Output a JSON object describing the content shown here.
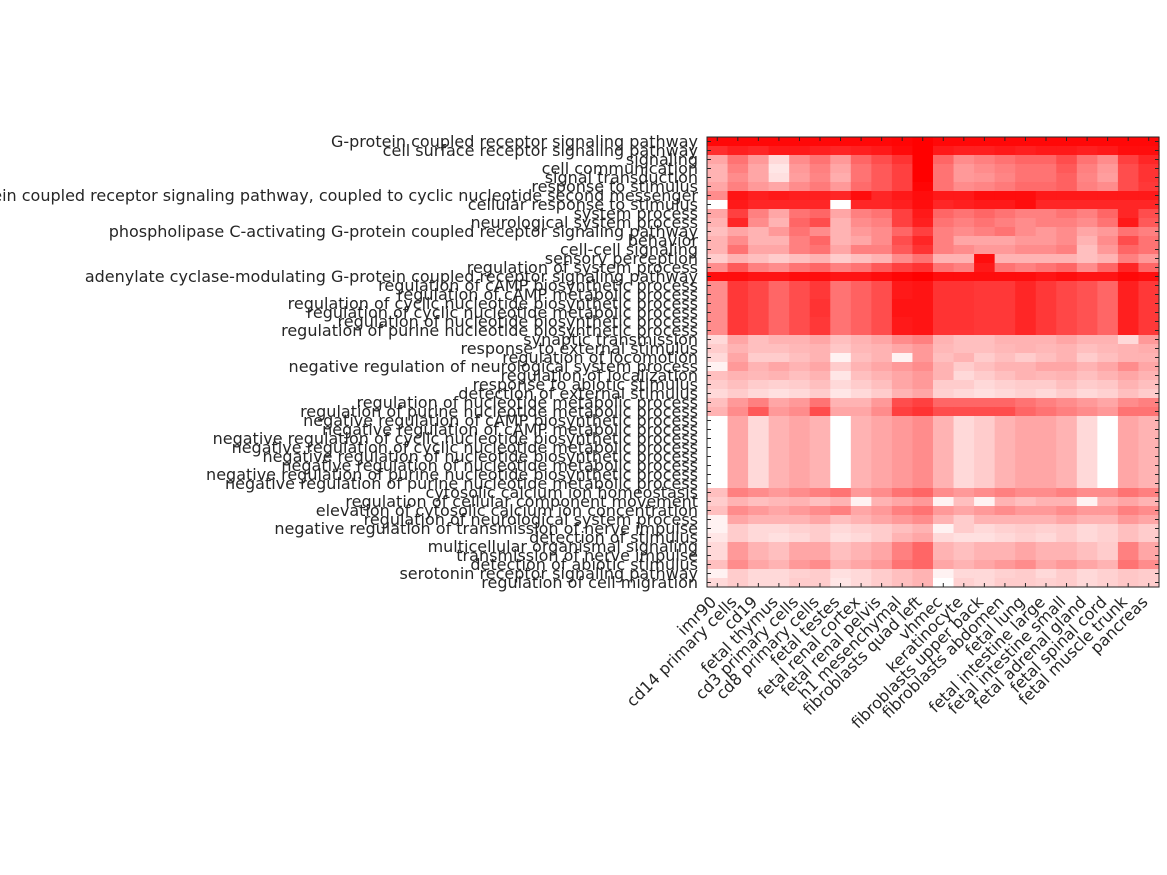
{
  "chart_data": {
    "type": "heatmap",
    "title": "",
    "xlabel": "",
    "ylabel": "",
    "colormap": [
      "#ffffff",
      "#ff0000"
    ],
    "color_range": [
      0,
      1
    ],
    "rows": [
      "G-protein coupled receptor signaling pathway",
      "cell surface receptor signaling pathway",
      "signaling",
      "cell communication",
      "signal transduction",
      "response to stimulus",
      "G-protein coupled receptor signaling pathway, coupled to cyclic nucleotide second messenger",
      "cellular response to stimulus",
      "system process",
      "neurological system process",
      "phospholipase C-activating G-protein coupled receptor signaling pathway",
      "behavior",
      "cell-cell signaling",
      "sensory perception",
      "regulation of system process",
      "adenylate cyclase-modulating G-protein coupled receptor signaling pathway",
      "regulation of cAMP biosynthetic process",
      "regulation of cAMP metabolic process",
      "regulation of cyclic nucleotide biosynthetic process",
      "regulation of cyclic nucleotide metabolic process",
      "regulation of nucleotide biosynthetic process",
      "regulation of purine nucleotide biosynthetic process",
      "synaptic transmission",
      "response to external stimulus",
      "regulation of locomotion",
      "negative regulation of neurological system process",
      "regulation of localization",
      "response to abiotic stimulus",
      "detection of external stimulus",
      "regulation of nucleotide metabolic process",
      "regulation of purine nucleotide metabolic process",
      "negative regulation of cAMP biosynthetic process",
      "negative regulation of cAMP metabolic process",
      "negative regulation of cyclic nucleotide biosynthetic process",
      "negative regulation of cyclic nucleotide metabolic process",
      "negative regulation of nucleotide biosynthetic process",
      "negative regulation of nucleotide metabolic process",
      "negative regulation of purine nucleotide biosynthetic process",
      "negative regulation of purine nucleotide metabolic process",
      "cytosolic calcium ion homeostasis",
      "regulation of cellular component movement",
      "elevation of cytosolic calcium ion concentration",
      "regulation of neurological system process",
      "negative regulation of transmission of nerve impulse",
      "detection of stimulus",
      "multicellular organismal signaling",
      "transmission of nerve impulse",
      "detection of abiotic stimulus",
      "serotonin receptor signaling pathway",
      "regulation of cell migration"
    ],
    "columns": [
      "imr90",
      "cd14 primary cells",
      "cd19",
      "fetal thymus",
      "cd3 primary cells",
      "cd8 primary cells",
      "fetal testes",
      "fetal renal cortex",
      "fetal renal pelvis",
      "h1 mesenchymal",
      "fibroblasts quad left",
      "vhmec",
      "keratinocyte",
      "fibroblasts upper back",
      "fibroblasts abdomen",
      "fetal lung",
      "fetal intestine large",
      "fetal intestine small",
      "fetal adrenal gland",
      "fetal spinal cord",
      "fetal muscle trunk",
      "pancreas"
    ],
    "values": [
      [
        0.97,
        0.97,
        0.97,
        0.97,
        0.97,
        0.97,
        0.97,
        0.97,
        0.97,
        0.98,
        1.0,
        0.97,
        0.97,
        0.97,
        0.97,
        0.97,
        0.97,
        0.97,
        0.97,
        0.97,
        0.97,
        0.97
      ],
      [
        0.82,
        0.88,
        0.85,
        0.9,
        0.9,
        0.88,
        0.86,
        0.88,
        0.9,
        0.96,
        1.0,
        0.9,
        0.88,
        0.88,
        0.9,
        0.88,
        0.9,
        0.9,
        0.88,
        0.9,
        0.95,
        0.95
      ],
      [
        0.35,
        0.55,
        0.4,
        0.15,
        0.45,
        0.55,
        0.4,
        0.6,
        0.7,
        0.8,
        1.0,
        0.6,
        0.45,
        0.5,
        0.55,
        0.6,
        0.6,
        0.7,
        0.55,
        0.45,
        0.75,
        0.85
      ],
      [
        0.3,
        0.5,
        0.35,
        0.1,
        0.4,
        0.5,
        0.35,
        0.55,
        0.65,
        0.75,
        1.0,
        0.55,
        0.4,
        0.45,
        0.5,
        0.55,
        0.55,
        0.65,
        0.5,
        0.4,
        0.7,
        0.8
      ],
      [
        0.3,
        0.45,
        0.35,
        0.12,
        0.38,
        0.48,
        0.32,
        0.55,
        0.65,
        0.75,
        1.0,
        0.55,
        0.4,
        0.42,
        0.48,
        0.55,
        0.55,
        0.62,
        0.48,
        0.38,
        0.7,
        0.8
      ],
      [
        0.35,
        0.5,
        0.4,
        0.35,
        0.45,
        0.52,
        0.4,
        0.58,
        0.65,
        0.75,
        0.98,
        0.55,
        0.45,
        0.48,
        0.52,
        0.58,
        0.58,
        0.62,
        0.5,
        0.45,
        0.7,
        0.78
      ],
      [
        0.45,
        0.92,
        0.88,
        0.9,
        0.88,
        0.88,
        0.85,
        0.95,
        0.85,
        0.9,
        0.95,
        0.9,
        0.9,
        0.95,
        0.95,
        0.95,
        0.9,
        0.9,
        0.9,
        0.9,
        0.9,
        0.9
      ],
      [
        0.0,
        0.9,
        0.85,
        0.85,
        0.85,
        0.85,
        0.0,
        0.85,
        0.85,
        0.88,
        0.95,
        0.85,
        0.88,
        0.9,
        0.9,
        0.95,
        0.85,
        0.85,
        0.85,
        0.85,
        0.85,
        0.85
      ],
      [
        0.35,
        0.75,
        0.5,
        0.35,
        0.55,
        0.6,
        0.35,
        0.5,
        0.55,
        0.75,
        0.9,
        0.6,
        0.55,
        0.6,
        0.55,
        0.5,
        0.5,
        0.55,
        0.5,
        0.6,
        0.85,
        0.7
      ],
      [
        0.3,
        0.85,
        0.45,
        0.3,
        0.6,
        0.7,
        0.3,
        0.45,
        0.5,
        0.75,
        0.88,
        0.55,
        0.5,
        0.55,
        0.5,
        0.45,
        0.5,
        0.5,
        0.45,
        0.55,
        0.9,
        0.65
      ],
      [
        0.25,
        0.35,
        0.3,
        0.4,
        0.55,
        0.45,
        0.3,
        0.4,
        0.45,
        0.6,
        0.75,
        0.5,
        0.45,
        0.5,
        0.55,
        0.45,
        0.4,
        0.45,
        0.35,
        0.4,
        0.55,
        0.5
      ],
      [
        0.3,
        0.45,
        0.3,
        0.3,
        0.5,
        0.6,
        0.3,
        0.35,
        0.45,
        0.7,
        0.85,
        0.5,
        0.35,
        0.35,
        0.35,
        0.4,
        0.4,
        0.45,
        0.3,
        0.45,
        0.7,
        0.55
      ],
      [
        0.3,
        0.55,
        0.35,
        0.35,
        0.5,
        0.55,
        0.35,
        0.5,
        0.5,
        0.65,
        0.8,
        0.5,
        0.45,
        0.4,
        0.4,
        0.45,
        0.45,
        0.5,
        0.25,
        0.4,
        0.6,
        0.55
      ],
      [
        0.2,
        0.3,
        0.25,
        0.2,
        0.25,
        0.3,
        0.2,
        0.25,
        0.3,
        0.45,
        0.55,
        0.3,
        0.3,
        0.95,
        0.3,
        0.3,
        0.3,
        0.3,
        0.25,
        0.3,
        0.5,
        0.4
      ],
      [
        0.45,
        0.65,
        0.5,
        0.45,
        0.55,
        0.6,
        0.5,
        0.55,
        0.65,
        0.75,
        0.8,
        0.55,
        0.5,
        0.9,
        0.55,
        0.5,
        0.55,
        0.6,
        0.45,
        0.6,
        0.85,
        0.6
      ],
      [
        0.95,
        0.95,
        0.92,
        0.92,
        0.95,
        0.95,
        0.92,
        0.92,
        0.95,
        0.98,
        1.0,
        0.95,
        0.95,
        0.95,
        0.95,
        0.95,
        0.92,
        0.95,
        0.92,
        0.92,
        0.97,
        0.95
      ],
      [
        0.45,
        0.78,
        0.72,
        0.6,
        0.7,
        0.78,
        0.55,
        0.62,
        0.7,
        0.9,
        0.92,
        0.8,
        0.8,
        0.78,
        0.78,
        0.85,
        0.78,
        0.72,
        0.68,
        0.6,
        0.88,
        0.78
      ],
      [
        0.45,
        0.78,
        0.72,
        0.6,
        0.7,
        0.78,
        0.55,
        0.62,
        0.7,
        0.9,
        0.92,
        0.8,
        0.8,
        0.78,
        0.78,
        0.85,
        0.78,
        0.72,
        0.68,
        0.6,
        0.88,
        0.78
      ],
      [
        0.45,
        0.78,
        0.72,
        0.6,
        0.7,
        0.8,
        0.55,
        0.62,
        0.7,
        0.92,
        0.92,
        0.8,
        0.8,
        0.78,
        0.78,
        0.85,
        0.78,
        0.72,
        0.68,
        0.6,
        0.88,
        0.78
      ],
      [
        0.45,
        0.78,
        0.72,
        0.6,
        0.7,
        0.8,
        0.55,
        0.62,
        0.7,
        0.92,
        0.92,
        0.8,
        0.8,
        0.78,
        0.78,
        0.85,
        0.78,
        0.72,
        0.68,
        0.6,
        0.88,
        0.78
      ],
      [
        0.45,
        0.78,
        0.72,
        0.6,
        0.7,
        0.78,
        0.55,
        0.62,
        0.7,
        0.9,
        0.92,
        0.8,
        0.8,
        0.78,
        0.78,
        0.85,
        0.78,
        0.72,
        0.68,
        0.6,
        0.88,
        0.78
      ],
      [
        0.45,
        0.78,
        0.72,
        0.6,
        0.7,
        0.78,
        0.55,
        0.62,
        0.7,
        0.9,
        0.92,
        0.8,
        0.8,
        0.78,
        0.78,
        0.85,
        0.78,
        0.72,
        0.68,
        0.6,
        0.88,
        0.78
      ],
      [
        0.15,
        0.35,
        0.25,
        0.3,
        0.3,
        0.35,
        0.25,
        0.3,
        0.35,
        0.45,
        0.5,
        0.3,
        0.25,
        0.25,
        0.3,
        0.3,
        0.3,
        0.35,
        0.3,
        0.3,
        0.15,
        0.4
      ],
      [
        0.2,
        0.3,
        0.25,
        0.25,
        0.28,
        0.3,
        0.22,
        0.28,
        0.3,
        0.35,
        0.4,
        0.28,
        0.25,
        0.25,
        0.28,
        0.3,
        0.28,
        0.3,
        0.25,
        0.28,
        0.3,
        0.32
      ],
      [
        0.15,
        0.35,
        0.2,
        0.2,
        0.25,
        0.3,
        0.05,
        0.25,
        0.3,
        0.05,
        0.4,
        0.25,
        0.3,
        0.2,
        0.25,
        0.2,
        0.25,
        0.3,
        0.2,
        0.25,
        0.3,
        0.3
      ],
      [
        0.05,
        0.4,
        0.3,
        0.35,
        0.3,
        0.35,
        0.2,
        0.3,
        0.35,
        0.4,
        0.45,
        0.3,
        0.2,
        0.25,
        0.3,
        0.3,
        0.35,
        0.35,
        0.3,
        0.35,
        0.45,
        0.35
      ],
      [
        0.25,
        0.3,
        0.28,
        0.3,
        0.25,
        0.3,
        0.1,
        0.25,
        0.3,
        0.35,
        0.4,
        0.3,
        0.15,
        0.2,
        0.25,
        0.3,
        0.28,
        0.3,
        0.25,
        0.3,
        0.35,
        0.3
      ],
      [
        0.2,
        0.25,
        0.2,
        0.18,
        0.2,
        0.25,
        0.15,
        0.2,
        0.25,
        0.35,
        0.4,
        0.2,
        0.2,
        0.15,
        0.18,
        0.2,
        0.2,
        0.25,
        0.2,
        0.22,
        0.3,
        0.25
      ],
      [
        0.15,
        0.2,
        0.15,
        0.12,
        0.15,
        0.2,
        0.1,
        0.15,
        0.2,
        0.3,
        0.35,
        0.18,
        0.15,
        0.12,
        0.15,
        0.18,
        0.15,
        0.2,
        0.15,
        0.18,
        0.25,
        0.2
      ],
      [
        0.25,
        0.4,
        0.5,
        0.35,
        0.4,
        0.55,
        0.3,
        0.3,
        0.4,
        0.7,
        0.75,
        0.6,
        0.6,
        0.6,
        0.6,
        0.55,
        0.5,
        0.45,
        0.4,
        0.35,
        0.45,
        0.5
      ],
      [
        0.3,
        0.45,
        0.65,
        0.4,
        0.45,
        0.7,
        0.35,
        0.35,
        0.45,
        0.75,
        0.8,
        0.7,
        0.7,
        0.7,
        0.7,
        0.6,
        0.55,
        0.5,
        0.45,
        0.4,
        0.55,
        0.55
      ],
      [
        0.0,
        0.35,
        0.15,
        0.3,
        0.35,
        0.3,
        0.0,
        0.3,
        0.35,
        0.4,
        0.45,
        0.3,
        0.15,
        0.2,
        0.3,
        0.35,
        0.35,
        0.3,
        0.15,
        0.0,
        0.35,
        0.3
      ],
      [
        0.0,
        0.35,
        0.15,
        0.3,
        0.35,
        0.3,
        0.0,
        0.3,
        0.35,
        0.4,
        0.45,
        0.3,
        0.15,
        0.2,
        0.3,
        0.35,
        0.35,
        0.3,
        0.15,
        0.0,
        0.35,
        0.3
      ],
      [
        0.0,
        0.35,
        0.15,
        0.3,
        0.35,
        0.3,
        0.0,
        0.3,
        0.35,
        0.4,
        0.45,
        0.3,
        0.15,
        0.2,
        0.3,
        0.35,
        0.35,
        0.3,
        0.15,
        0.0,
        0.35,
        0.3
      ],
      [
        0.0,
        0.35,
        0.15,
        0.3,
        0.35,
        0.3,
        0.0,
        0.3,
        0.35,
        0.4,
        0.45,
        0.3,
        0.15,
        0.2,
        0.3,
        0.35,
        0.35,
        0.3,
        0.15,
        0.0,
        0.35,
        0.3
      ],
      [
        0.0,
        0.35,
        0.15,
        0.3,
        0.35,
        0.3,
        0.0,
        0.3,
        0.35,
        0.4,
        0.45,
        0.3,
        0.15,
        0.2,
        0.3,
        0.35,
        0.35,
        0.3,
        0.15,
        0.0,
        0.35,
        0.3
      ],
      [
        0.0,
        0.35,
        0.15,
        0.3,
        0.35,
        0.3,
        0.0,
        0.3,
        0.35,
        0.4,
        0.45,
        0.3,
        0.15,
        0.2,
        0.3,
        0.35,
        0.35,
        0.3,
        0.15,
        0.0,
        0.35,
        0.3
      ],
      [
        0.0,
        0.35,
        0.15,
        0.3,
        0.35,
        0.3,
        0.0,
        0.3,
        0.35,
        0.4,
        0.45,
        0.3,
        0.15,
        0.2,
        0.3,
        0.35,
        0.35,
        0.3,
        0.15,
        0.0,
        0.35,
        0.3
      ],
      [
        0.0,
        0.35,
        0.15,
        0.3,
        0.35,
        0.3,
        0.0,
        0.3,
        0.35,
        0.4,
        0.45,
        0.3,
        0.15,
        0.2,
        0.3,
        0.35,
        0.35,
        0.3,
        0.15,
        0.0,
        0.35,
        0.3
      ],
      [
        0.25,
        0.5,
        0.45,
        0.4,
        0.45,
        0.5,
        0.55,
        0.4,
        0.45,
        0.55,
        0.6,
        0.45,
        0.4,
        0.45,
        0.5,
        0.45,
        0.45,
        0.5,
        0.45,
        0.45,
        0.55,
        0.5
      ],
      [
        0.2,
        0.3,
        0.25,
        0.28,
        0.3,
        0.25,
        0.3,
        0.05,
        0.3,
        0.35,
        0.4,
        0.05,
        0.25,
        0.05,
        0.3,
        0.25,
        0.3,
        0.3,
        0.05,
        0.3,
        0.35,
        0.3
      ],
      [
        0.25,
        0.45,
        0.4,
        0.35,
        0.4,
        0.45,
        0.5,
        0.35,
        0.4,
        0.5,
        0.55,
        0.4,
        0.35,
        0.4,
        0.45,
        0.4,
        0.4,
        0.45,
        0.4,
        0.4,
        0.5,
        0.45
      ],
      [
        0.05,
        0.35,
        0.3,
        0.3,
        0.3,
        0.35,
        0.25,
        0.3,
        0.35,
        0.4,
        0.45,
        0.3,
        0.2,
        0.3,
        0.3,
        0.3,
        0.3,
        0.35,
        0.3,
        0.3,
        0.4,
        0.35
      ],
      [
        0.05,
        0.2,
        0.15,
        0.15,
        0.18,
        0.2,
        0.15,
        0.18,
        0.2,
        0.25,
        0.3,
        0.05,
        0.2,
        0.15,
        0.18,
        0.2,
        0.18,
        0.2,
        0.15,
        0.18,
        0.25,
        0.2
      ],
      [
        0.1,
        0.2,
        0.15,
        0.12,
        0.15,
        0.2,
        0.12,
        0.15,
        0.2,
        0.3,
        0.35,
        0.15,
        0.12,
        0.12,
        0.15,
        0.18,
        0.15,
        0.2,
        0.15,
        0.18,
        0.25,
        0.2
      ],
      [
        0.15,
        0.4,
        0.3,
        0.25,
        0.35,
        0.35,
        0.25,
        0.3,
        0.35,
        0.5,
        0.6,
        0.3,
        0.25,
        0.3,
        0.3,
        0.35,
        0.3,
        0.3,
        0.25,
        0.2,
        0.5,
        0.35
      ],
      [
        0.15,
        0.4,
        0.3,
        0.25,
        0.35,
        0.35,
        0.25,
        0.3,
        0.35,
        0.5,
        0.6,
        0.3,
        0.25,
        0.3,
        0.3,
        0.35,
        0.3,
        0.3,
        0.25,
        0.2,
        0.5,
        0.35
      ],
      [
        0.25,
        0.45,
        0.35,
        0.3,
        0.4,
        0.45,
        0.3,
        0.35,
        0.4,
        0.55,
        0.6,
        0.35,
        0.3,
        0.35,
        0.4,
        0.45,
        0.35,
        0.4,
        0.35,
        0.3,
        0.55,
        0.45
      ],
      [
        0.05,
        0.2,
        0.15,
        0.15,
        0.18,
        0.2,
        0.12,
        0.15,
        0.2,
        0.25,
        0.3,
        0.05,
        0.15,
        0.15,
        0.18,
        0.2,
        0.15,
        0.2,
        0.15,
        0.18,
        0.22,
        0.2
      ],
      [
        0.15,
        0.2,
        0.15,
        0.15,
        0.2,
        0.2,
        0.1,
        0.15,
        0.2,
        0.25,
        0.3,
        0.0,
        0.18,
        0.15,
        0.2,
        0.2,
        0.18,
        0.2,
        0.15,
        0.18,
        0.22,
        0.2
      ]
    ]
  }
}
